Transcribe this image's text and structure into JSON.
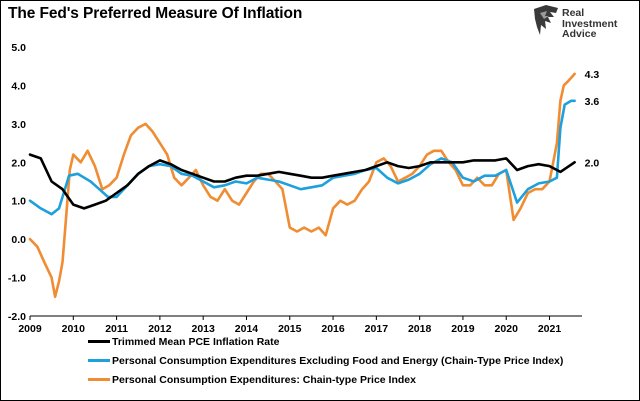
{
  "chart_data": {
    "type": "line",
    "title": "The Fed's Preferred Measure Of Inflation",
    "xlabel": "",
    "ylabel": "",
    "x_ticks": [
      "2009",
      "2010",
      "2011",
      "2012",
      "2013",
      "2014",
      "2015",
      "2016",
      "2017",
      "2018",
      "2019",
      "2020",
      "2021"
    ],
    "y_ticks": [
      "5.0",
      "4.0",
      "3.0",
      "2.0",
      "1.0",
      "0.0",
      "-1.0",
      "-2.0"
    ],
    "xlim": [
      2009.0,
      2021.75
    ],
    "ylim": [
      -2.0,
      5.0
    ],
    "grid": false,
    "legend_position": "bottom",
    "series": [
      {
        "name": "Trimmed Mean PCE Inflation Rate",
        "color": "#000000",
        "end_label": "2.0",
        "x": [
          2009.0,
          2009.25,
          2009.5,
          2009.75,
          2010.0,
          2010.25,
          2010.5,
          2010.75,
          2011.0,
          2011.25,
          2011.5,
          2011.75,
          2012.0,
          2012.25,
          2012.5,
          2012.75,
          2013.0,
          2013.25,
          2013.5,
          2013.75,
          2014.0,
          2014.25,
          2014.5,
          2014.75,
          2015.0,
          2015.25,
          2015.5,
          2015.75,
          2016.0,
          2016.25,
          2016.5,
          2016.75,
          2017.0,
          2017.25,
          2017.5,
          2017.75,
          2018.0,
          2018.25,
          2018.5,
          2018.75,
          2019.0,
          2019.25,
          2019.5,
          2019.75,
          2020.0,
          2020.25,
          2020.5,
          2020.75,
          2021.0,
          2021.25,
          2021.58
        ],
        "y": [
          2.2,
          2.1,
          1.5,
          1.3,
          0.9,
          0.8,
          0.9,
          1.0,
          1.2,
          1.4,
          1.7,
          1.9,
          2.05,
          1.95,
          1.8,
          1.7,
          1.6,
          1.5,
          1.5,
          1.6,
          1.65,
          1.65,
          1.7,
          1.75,
          1.7,
          1.65,
          1.6,
          1.6,
          1.65,
          1.7,
          1.75,
          1.8,
          1.9,
          2.0,
          1.9,
          1.85,
          1.9,
          2.0,
          2.0,
          2.0,
          2.0,
          2.05,
          2.05,
          2.05,
          2.1,
          1.8,
          1.9,
          1.95,
          1.9,
          1.75,
          2.0
        ]
      },
      {
        "name": "Personal Consumption Expenditures Excluding Food and Energy (Chain-Type Price Index)",
        "color": "#1ea0dc",
        "end_label": "3.6",
        "x": [
          2009.0,
          2009.25,
          2009.5,
          2009.67,
          2009.9,
          2010.1,
          2010.4,
          2010.6,
          2010.8,
          2011.0,
          2011.25,
          2011.5,
          2011.75,
          2012.0,
          2012.25,
          2012.5,
          2012.75,
          2013.0,
          2013.25,
          2013.5,
          2013.75,
          2014.0,
          2014.25,
          2014.5,
          2014.75,
          2015.0,
          2015.25,
          2015.5,
          2015.75,
          2016.0,
          2016.25,
          2016.5,
          2016.75,
          2017.0,
          2017.25,
          2017.5,
          2017.75,
          2018.0,
          2018.25,
          2018.5,
          2018.75,
          2019.0,
          2019.25,
          2019.5,
          2019.75,
          2020.0,
          2020.25,
          2020.5,
          2020.75,
          2021.0,
          2021.17,
          2021.25,
          2021.35,
          2021.5,
          2021.58
        ],
        "y": [
          1.0,
          0.8,
          0.65,
          0.8,
          1.65,
          1.7,
          1.5,
          1.3,
          1.1,
          1.1,
          1.4,
          1.7,
          1.9,
          1.95,
          1.9,
          1.7,
          1.65,
          1.5,
          1.35,
          1.4,
          1.5,
          1.45,
          1.6,
          1.55,
          1.5,
          1.4,
          1.3,
          1.35,
          1.4,
          1.6,
          1.65,
          1.7,
          1.8,
          1.85,
          1.6,
          1.45,
          1.55,
          1.7,
          1.95,
          2.1,
          2.0,
          1.6,
          1.5,
          1.65,
          1.65,
          1.8,
          0.95,
          1.3,
          1.45,
          1.5,
          1.6,
          2.9,
          3.5,
          3.6,
          3.6
        ]
      },
      {
        "name": "Personal Consumption Expenditures: Chain-type Price Index",
        "color": "#f08c32",
        "end_label": "4.3",
        "x": [
          2009.0,
          2009.17,
          2009.33,
          2009.5,
          2009.58,
          2009.67,
          2009.75,
          2009.83,
          2009.92,
          2010.0,
          2010.17,
          2010.33,
          2010.5,
          2010.67,
          2010.83,
          2011.0,
          2011.17,
          2011.33,
          2011.5,
          2011.67,
          2011.83,
          2012.0,
          2012.17,
          2012.33,
          2012.5,
          2012.67,
          2012.83,
          2013.0,
          2013.17,
          2013.33,
          2013.5,
          2013.67,
          2013.83,
          2014.0,
          2014.17,
          2014.33,
          2014.5,
          2014.67,
          2014.83,
          2015.0,
          2015.17,
          2015.33,
          2015.5,
          2015.67,
          2015.83,
          2016.0,
          2016.17,
          2016.33,
          2016.5,
          2016.67,
          2016.83,
          2017.0,
          2017.17,
          2017.33,
          2017.5,
          2017.67,
          2017.83,
          2018.0,
          2018.17,
          2018.33,
          2018.5,
          2018.67,
          2018.83,
          2019.0,
          2019.17,
          2019.33,
          2019.5,
          2019.67,
          2019.83,
          2020.0,
          2020.17,
          2020.33,
          2020.5,
          2020.67,
          2020.83,
          2021.0,
          2021.17,
          2021.25,
          2021.33,
          2021.42,
          2021.5,
          2021.58
        ],
        "y": [
          0.0,
          -0.2,
          -0.6,
          -1.0,
          -1.5,
          -1.1,
          -0.6,
          0.5,
          1.8,
          2.2,
          2.0,
          2.3,
          1.9,
          1.3,
          1.4,
          1.6,
          2.2,
          2.7,
          2.9,
          3.0,
          2.8,
          2.5,
          2.2,
          1.6,
          1.4,
          1.6,
          1.8,
          1.4,
          1.1,
          1.0,
          1.3,
          1.0,
          0.9,
          1.2,
          1.5,
          1.7,
          1.7,
          1.5,
          1.3,
          0.3,
          0.2,
          0.3,
          0.2,
          0.3,
          0.1,
          0.8,
          1.0,
          0.9,
          1.0,
          1.3,
          1.5,
          2.0,
          2.1,
          1.9,
          1.5,
          1.6,
          1.7,
          1.9,
          2.2,
          2.3,
          2.3,
          2.0,
          1.8,
          1.4,
          1.4,
          1.6,
          1.4,
          1.4,
          1.7,
          1.8,
          0.5,
          0.8,
          1.2,
          1.3,
          1.3,
          1.5,
          2.5,
          3.6,
          4.0,
          4.1,
          4.2,
          4.3
        ]
      }
    ]
  },
  "logo": {
    "text": "Real\nInvestment\nAdvice"
  }
}
